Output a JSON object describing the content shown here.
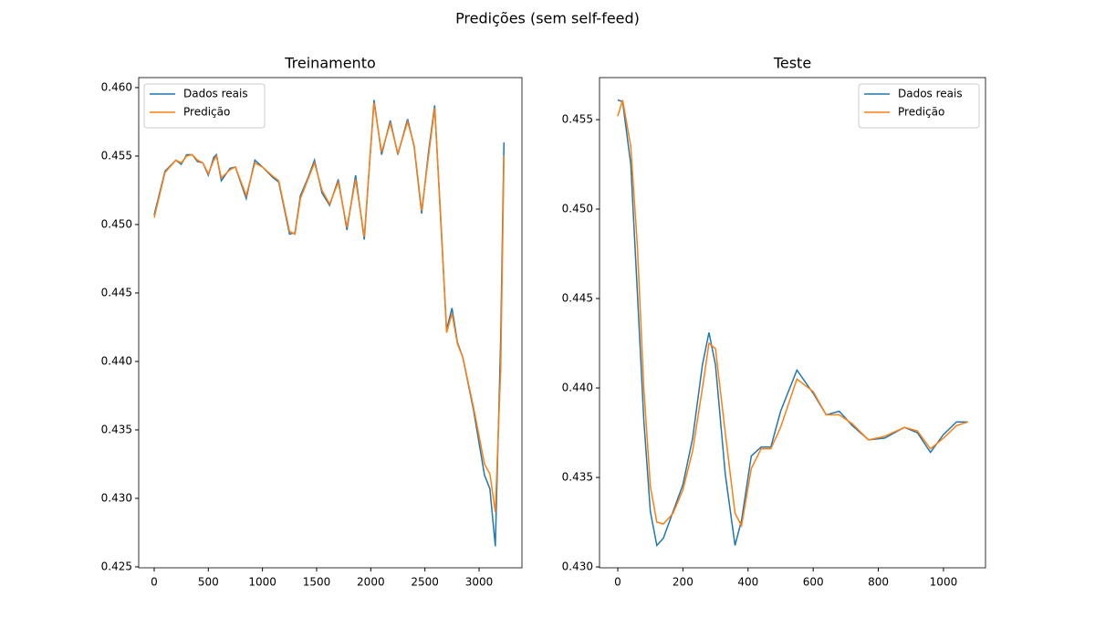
{
  "title": "Predições (sem self-feed)",
  "chart_data": [
    {
      "type": "line",
      "title": "Treinamento",
      "legend": "upper left",
      "grid": false,
      "x": [
        0,
        100,
        200,
        250,
        300,
        350,
        400,
        450,
        500,
        550,
        575,
        620,
        700,
        750,
        850,
        930,
        1000,
        1100,
        1150,
        1250,
        1300,
        1350,
        1420,
        1480,
        1550,
        1620,
        1700,
        1780,
        1860,
        1940,
        2030,
        2100,
        2180,
        2250,
        2340,
        2400,
        2470,
        2530,
        2590,
        2650,
        2700,
        2750,
        2800,
        2850,
        2950,
        3050,
        3100,
        3150,
        3200,
        3230
      ],
      "series": [
        {
          "name": "Dados reais",
          "color": "#1f77b4",
          "values": [
            0.4507,
            0.4539,
            0.4547,
            0.4544,
            0.4551,
            0.4551,
            0.4546,
            0.4545,
            0.4536,
            0.4549,
            0.4551,
            0.4532,
            0.4541,
            0.4542,
            0.4519,
            0.4547,
            0.4542,
            0.4534,
            0.4531,
            0.4493,
            0.4494,
            0.4521,
            0.4534,
            0.4547,
            0.4523,
            0.4514,
            0.4533,
            0.4496,
            0.4536,
            0.4489,
            0.4591,
            0.4551,
            0.4576,
            0.4551,
            0.4577,
            0.4557,
            0.4508,
            0.4551,
            0.4587,
            0.4497,
            0.4423,
            0.4439,
            0.4414,
            0.4403,
            0.4364,
            0.4317,
            0.4307,
            0.4265,
            0.4417,
            0.456
          ]
        },
        {
          "name": "Predição",
          "color": "#ff7f0e",
          "values": [
            0.4505,
            0.4538,
            0.4547,
            0.4545,
            0.455,
            0.4551,
            0.4547,
            0.4545,
            0.4537,
            0.4547,
            0.455,
            0.4534,
            0.454,
            0.4542,
            0.4521,
            0.4545,
            0.4542,
            0.4535,
            0.4532,
            0.4495,
            0.4493,
            0.4519,
            0.4533,
            0.4545,
            0.4525,
            0.4515,
            0.4531,
            0.4498,
            0.4533,
            0.4491,
            0.4589,
            0.4553,
            0.4574,
            0.4552,
            0.4575,
            0.4558,
            0.451,
            0.4548,
            0.4585,
            0.45,
            0.4421,
            0.4435,
            0.4413,
            0.4403,
            0.4366,
            0.4325,
            0.4318,
            0.429,
            0.4395,
            0.455
          ]
        }
      ],
      "xlim": [
        -143,
        3396
      ],
      "ylim": [
        0.42493,
        0.46073
      ],
      "xticks": [
        0,
        500,
        1000,
        1500,
        2000,
        2500,
        3000
      ],
      "yticks": [
        0.425,
        {
          "value": 0.43,
          "label": "0.430"
        },
        0.435,
        {
          "value": 0.44,
          "label": "0.440"
        },
        0.445,
        {
          "value": 0.45,
          "label": "0.450"
        },
        0.455,
        {
          "value": 0.46,
          "label": "0.460"
        }
      ]
    },
    {
      "type": "line",
      "title": "Teste",
      "legend": "upper right",
      "grid": false,
      "x": [
        0,
        15,
        40,
        60,
        80,
        100,
        120,
        140,
        170,
        200,
        230,
        260,
        280,
        300,
        330,
        360,
        380,
        410,
        440,
        470,
        500,
        550,
        600,
        640,
        680,
        720,
        770,
        820,
        880,
        920,
        960,
        1000,
        1040,
        1075
      ],
      "series": [
        {
          "name": "Dados reais",
          "color": "#1f77b4",
          "values": [
            0.4561,
            0.456,
            0.4525,
            0.4454,
            0.4382,
            0.4331,
            0.4312,
            0.4316,
            0.4331,
            0.4346,
            0.4372,
            0.4413,
            0.4431,
            0.4413,
            0.4352,
            0.4312,
            0.4326,
            0.4362,
            0.4367,
            0.4367,
            0.4387,
            0.441,
            0.4397,
            0.4385,
            0.4387,
            0.4379,
            0.4371,
            0.4372,
            0.4378,
            0.4375,
            0.4364,
            0.4374,
            0.4381,
            0.4381
          ]
        },
        {
          "name": "Predição",
          "color": "#ff7f0e",
          "values": [
            0.4552,
            0.4561,
            0.4535,
            0.448,
            0.44,
            0.4345,
            0.4325,
            0.4324,
            0.433,
            0.4343,
            0.4365,
            0.44,
            0.4425,
            0.4422,
            0.4375,
            0.433,
            0.4323,
            0.4355,
            0.4366,
            0.4366,
            0.4378,
            0.4405,
            0.4398,
            0.4385,
            0.4385,
            0.438,
            0.4371,
            0.4373,
            0.4378,
            0.4376,
            0.4366,
            0.4372,
            0.4379,
            0.4381
          ]
        }
      ],
      "xlim": [
        -56,
        1129
      ],
      "ylim": [
        0.42995,
        0.45735
      ],
      "xticks": [
        0,
        200,
        400,
        600,
        800,
        1000
      ],
      "yticks": [
        {
          "value": 0.43,
          "label": "0.430"
        },
        0.435,
        {
          "value": 0.44,
          "label": "0.440"
        },
        0.445,
        {
          "value": 0.45,
          "label": "0.450"
        },
        0.455
      ]
    }
  ]
}
